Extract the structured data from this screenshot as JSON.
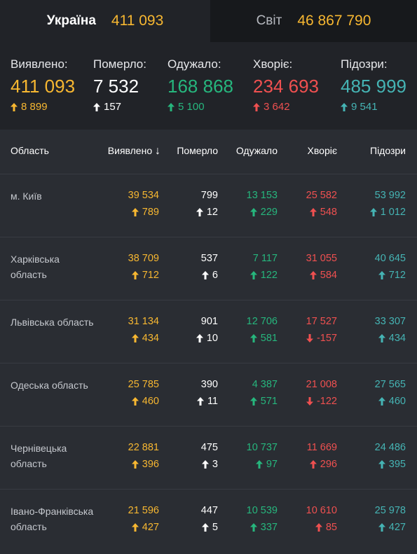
{
  "tabs": {
    "ukraine": {
      "label": "Україна",
      "count": "411 093"
    },
    "world": {
      "label": "Світ",
      "count": "46 867 790"
    }
  },
  "summary": [
    {
      "key": "detected",
      "label": "Виявлено:",
      "value": "411 093",
      "delta": "8 899",
      "direction": "up",
      "color": "#f7b731"
    },
    {
      "key": "died",
      "label": "Померло:",
      "value": "7 532",
      "delta": "157",
      "direction": "up",
      "color": "#ffffff"
    },
    {
      "key": "recovered",
      "label": "Одужало:",
      "value": "168 868",
      "delta": "5 100",
      "direction": "up",
      "color": "#26b67d"
    },
    {
      "key": "sick",
      "label": "Хворіє:",
      "value": "234 693",
      "delta": "3 642",
      "direction": "up",
      "color": "#ef5050"
    },
    {
      "key": "suspected",
      "label": "Підозри:",
      "value": "485 999",
      "delta": "9 541",
      "direction": "up",
      "color": "#45b4b4"
    }
  ],
  "table": {
    "headers": {
      "region": "Область",
      "detected": "Виявлено",
      "sort_icon": "↓",
      "died": "Померло",
      "recovered": "Одужало",
      "sick": "Хворіє",
      "suspected": "Підозри"
    },
    "rows": [
      {
        "region": "м. Київ",
        "detected": "39 534",
        "detected_delta": "789",
        "died": "799",
        "died_delta": "12",
        "recovered": "13 153",
        "recovered_delta": "229",
        "sick": "25 582",
        "sick_delta": "548",
        "sick_dir": "up",
        "suspected": "53 992",
        "suspected_delta": "1 012"
      },
      {
        "region": "Харківська область",
        "detected": "38 709",
        "detected_delta": "712",
        "died": "537",
        "died_delta": "6",
        "recovered": "7 117",
        "recovered_delta": "122",
        "sick": "31 055",
        "sick_delta": "584",
        "sick_dir": "up",
        "suspected": "40 645",
        "suspected_delta": "712"
      },
      {
        "region": "Львівська область",
        "detected": "31 134",
        "detected_delta": "434",
        "died": "901",
        "died_delta": "10",
        "recovered": "12 706",
        "recovered_delta": "581",
        "sick": "17 527",
        "sick_delta": "-157",
        "sick_dir": "down",
        "suspected": "33 307",
        "suspected_delta": "434"
      },
      {
        "region": "Одеська область",
        "detected": "25 785",
        "detected_delta": "460",
        "died": "390",
        "died_delta": "11",
        "recovered": "4 387",
        "recovered_delta": "571",
        "sick": "21 008",
        "sick_delta": "-122",
        "sick_dir": "down",
        "suspected": "27 565",
        "suspected_delta": "460"
      },
      {
        "region": "Чернівецька область",
        "detected": "22 881",
        "detected_delta": "396",
        "died": "475",
        "died_delta": "3",
        "recovered": "10 737",
        "recovered_delta": "97",
        "sick": "11 669",
        "sick_delta": "296",
        "sick_dir": "up",
        "suspected": "24 486",
        "suspected_delta": "395"
      },
      {
        "region": "Івано-Франківська область",
        "detected": "21 596",
        "detected_delta": "427",
        "died": "447",
        "died_delta": "5",
        "recovered": "10 539",
        "recovered_delta": "337",
        "sick": "10 610",
        "sick_delta": "85",
        "sick_dir": "up",
        "suspected": "25 978",
        "suspected_delta": "427"
      }
    ]
  },
  "colors": {
    "detected": "#f7b731",
    "died": "#ffffff",
    "recovered": "#26b67d",
    "sick": "#ef5050",
    "suspected": "#45b4b4"
  }
}
